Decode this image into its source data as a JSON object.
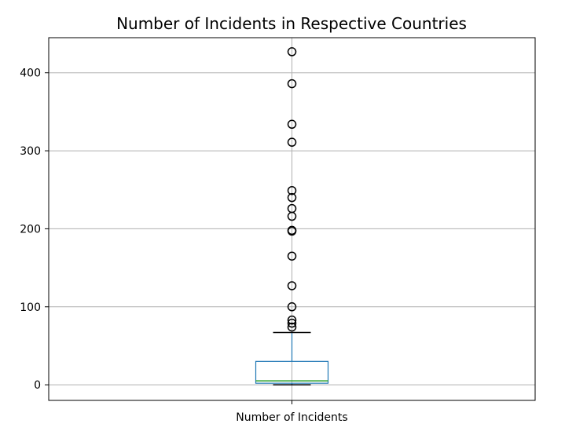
{
  "chart_data": {
    "type": "box",
    "title": "Number of Incidents in Respective Countries",
    "xlabel": "",
    "ylabel": "",
    "categories": [
      "Number of Incidents"
    ],
    "ylim": [
      -20,
      445
    ],
    "yticks": [
      0,
      100,
      200,
      300,
      400
    ],
    "grid": true,
    "box": {
      "whisker_low": 0,
      "q1": 2,
      "median": 5,
      "q3": 30,
      "whisker_high": 67
    },
    "outliers": [
      74,
      79,
      83,
      100,
      127,
      165,
      197,
      198,
      216,
      226,
      240,
      249,
      311,
      334,
      386,
      427
    ],
    "colors": {
      "box": "#1f77b4",
      "median": "#2ca02c",
      "whisker": "#1f77b4",
      "cap": "#000000",
      "outlier": "#000000",
      "grid": "#b0b0b0"
    }
  }
}
